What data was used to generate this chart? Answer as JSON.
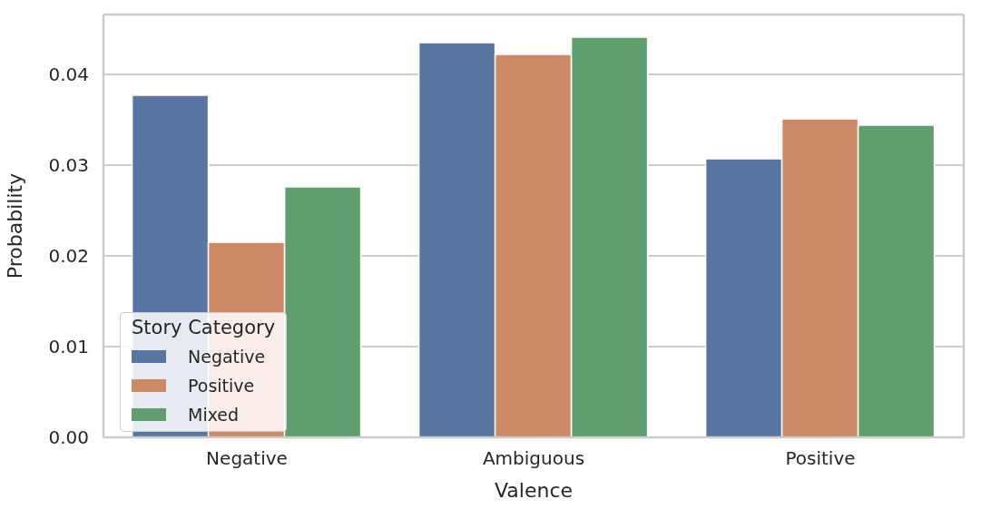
{
  "chart_data": {
    "type": "bar",
    "xlabel": "Valence",
    "ylabel": "Probability",
    "legend_title": "Story Category",
    "categories": [
      "Negative",
      "Ambiguous",
      "Positive"
    ],
    "series": [
      {
        "name": "Negative",
        "color": "#5875a4",
        "values": [
          0.0377,
          0.0435,
          0.0307
        ]
      },
      {
        "name": "Positive",
        "color": "#cc8963",
        "values": [
          0.0215,
          0.0422,
          0.0351
        ]
      },
      {
        "name": "Mixed",
        "color": "#5f9e6e",
        "values": [
          0.0276,
          0.0441,
          0.0344
        ]
      }
    ],
    "ylim": [
      0,
      0.0466
    ],
    "yticks": [
      {
        "value": 0,
        "label": "0.00"
      },
      {
        "value": 0.01,
        "label": "0.01"
      },
      {
        "value": 0.02,
        "label": "0.02"
      },
      {
        "value": 0.03,
        "label": "0.03"
      },
      {
        "value": 0.04,
        "label": "0.04"
      }
    ],
    "grid": "y",
    "legend": "bottom left"
  }
}
